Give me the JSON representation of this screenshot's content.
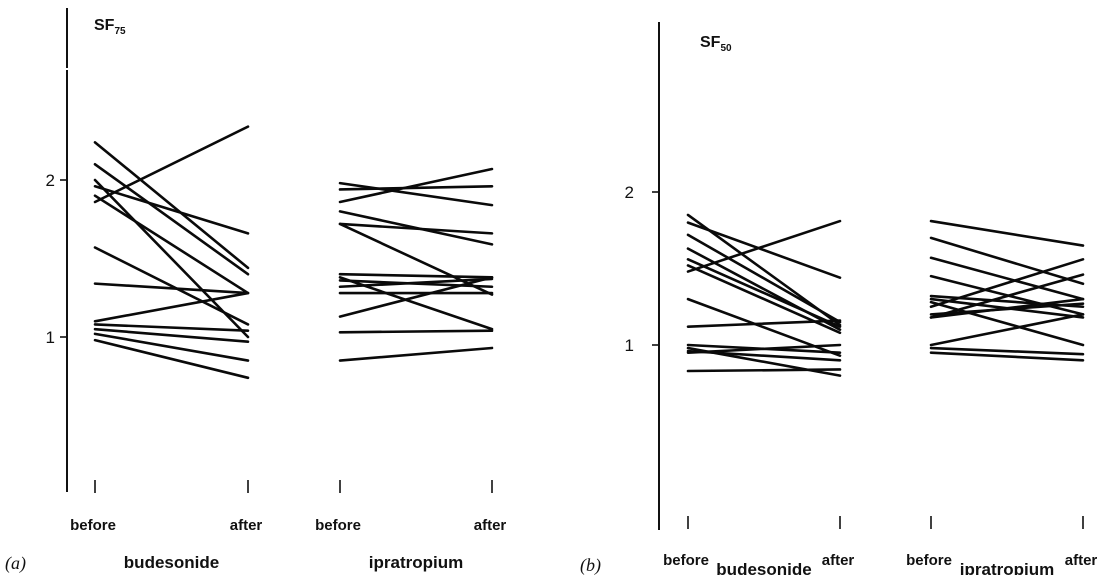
{
  "chart_data": [
    {
      "type": "line",
      "panel_label": "(a)",
      "title_main": "SF",
      "title_sub": "75",
      "y_ticks": [
        1,
        2
      ],
      "ylim": [
        0,
        3.0
      ],
      "groups": [
        {
          "name": "budesonide",
          "x_labels": [
            "before",
            "after"
          ],
          "pairs": [
            [
              1.86,
              2.34
            ],
            [
              2.24,
              1.44
            ],
            [
              2.1,
              1.4
            ],
            [
              2.0,
              1.0
            ],
            [
              1.96,
              1.66
            ],
            [
              1.9,
              1.28
            ],
            [
              1.57,
              1.08
            ],
            [
              1.34,
              1.28
            ],
            [
              1.1,
              1.28
            ],
            [
              1.08,
              1.04
            ],
            [
              1.05,
              0.97
            ],
            [
              1.02,
              0.85
            ],
            [
              0.98,
              0.74
            ]
          ]
        },
        {
          "name": "ipratropium",
          "x_labels": [
            "before",
            "after"
          ],
          "pairs": [
            [
              1.98,
              1.84
            ],
            [
              1.94,
              1.96
            ],
            [
              1.86,
              2.07
            ],
            [
              1.8,
              1.59
            ],
            [
              1.72,
              1.66
            ],
            [
              1.72,
              1.27
            ],
            [
              1.4,
              1.38
            ],
            [
              1.38,
              1.05
            ],
            [
              1.36,
              1.32
            ],
            [
              1.32,
              1.37
            ],
            [
              1.28,
              1.28
            ],
            [
              1.13,
              1.38
            ],
            [
              1.03,
              1.04
            ],
            [
              0.85,
              0.93
            ]
          ]
        }
      ]
    },
    {
      "type": "line",
      "panel_label": "(b)",
      "title_main": "SF",
      "title_sub": "50",
      "y_ticks": [
        1,
        2
      ],
      "ylim": [
        0,
        3.0
      ],
      "groups": [
        {
          "name": "budesonide",
          "x_labels": [
            "before",
            "after"
          ],
          "pairs": [
            [
              1.85,
              1.13
            ],
            [
              1.8,
              1.44
            ],
            [
              1.72,
              1.15
            ],
            [
              1.63,
              1.1
            ],
            [
              1.56,
              1.12
            ],
            [
              1.52,
              1.08
            ],
            [
              1.48,
              1.81
            ],
            [
              1.3,
              0.93
            ],
            [
              1.12,
              1.16
            ],
            [
              1.0,
              0.95
            ],
            [
              0.98,
              0.8
            ],
            [
              0.95,
              1.0
            ],
            [
              0.96,
              0.9
            ],
            [
              0.83,
              0.84
            ]
          ]
        },
        {
          "name": "ipratropium",
          "x_labels": [
            "before",
            "after"
          ],
          "pairs": [
            [
              1.81,
              1.65
            ],
            [
              1.7,
              1.4
            ],
            [
              1.57,
              1.3
            ],
            [
              1.45,
              1.2
            ],
            [
              1.32,
              1.25
            ],
            [
              1.3,
              1.18
            ],
            [
              1.28,
              1.0
            ],
            [
              1.25,
              1.56
            ],
            [
              1.2,
              1.27
            ],
            [
              1.18,
              1.3
            ],
            [
              1.18,
              1.46
            ],
            [
              1.0,
              1.2
            ],
            [
              0.98,
              0.94
            ],
            [
              0.95,
              0.9
            ]
          ]
        }
      ]
    }
  ]
}
